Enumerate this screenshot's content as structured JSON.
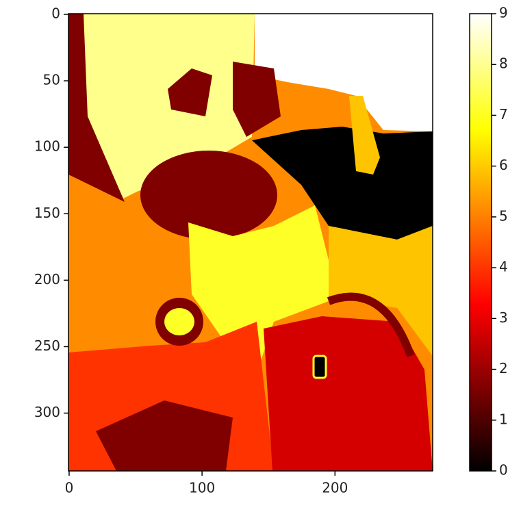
{
  "chart_data": {
    "type": "image",
    "colormap": "hot",
    "xlim": [
      -0.5,
      273.5
    ],
    "ylim": [
      343.5,
      -0.5
    ],
    "xticks": [
      0,
      100,
      200
    ],
    "yticks": [
      0,
      50,
      100,
      150,
      200,
      250,
      300
    ],
    "clim": [
      0,
      9
    ],
    "cticks": [
      0,
      1,
      2,
      3,
      4,
      5,
      6,
      7,
      8,
      9
    ]
  }
}
